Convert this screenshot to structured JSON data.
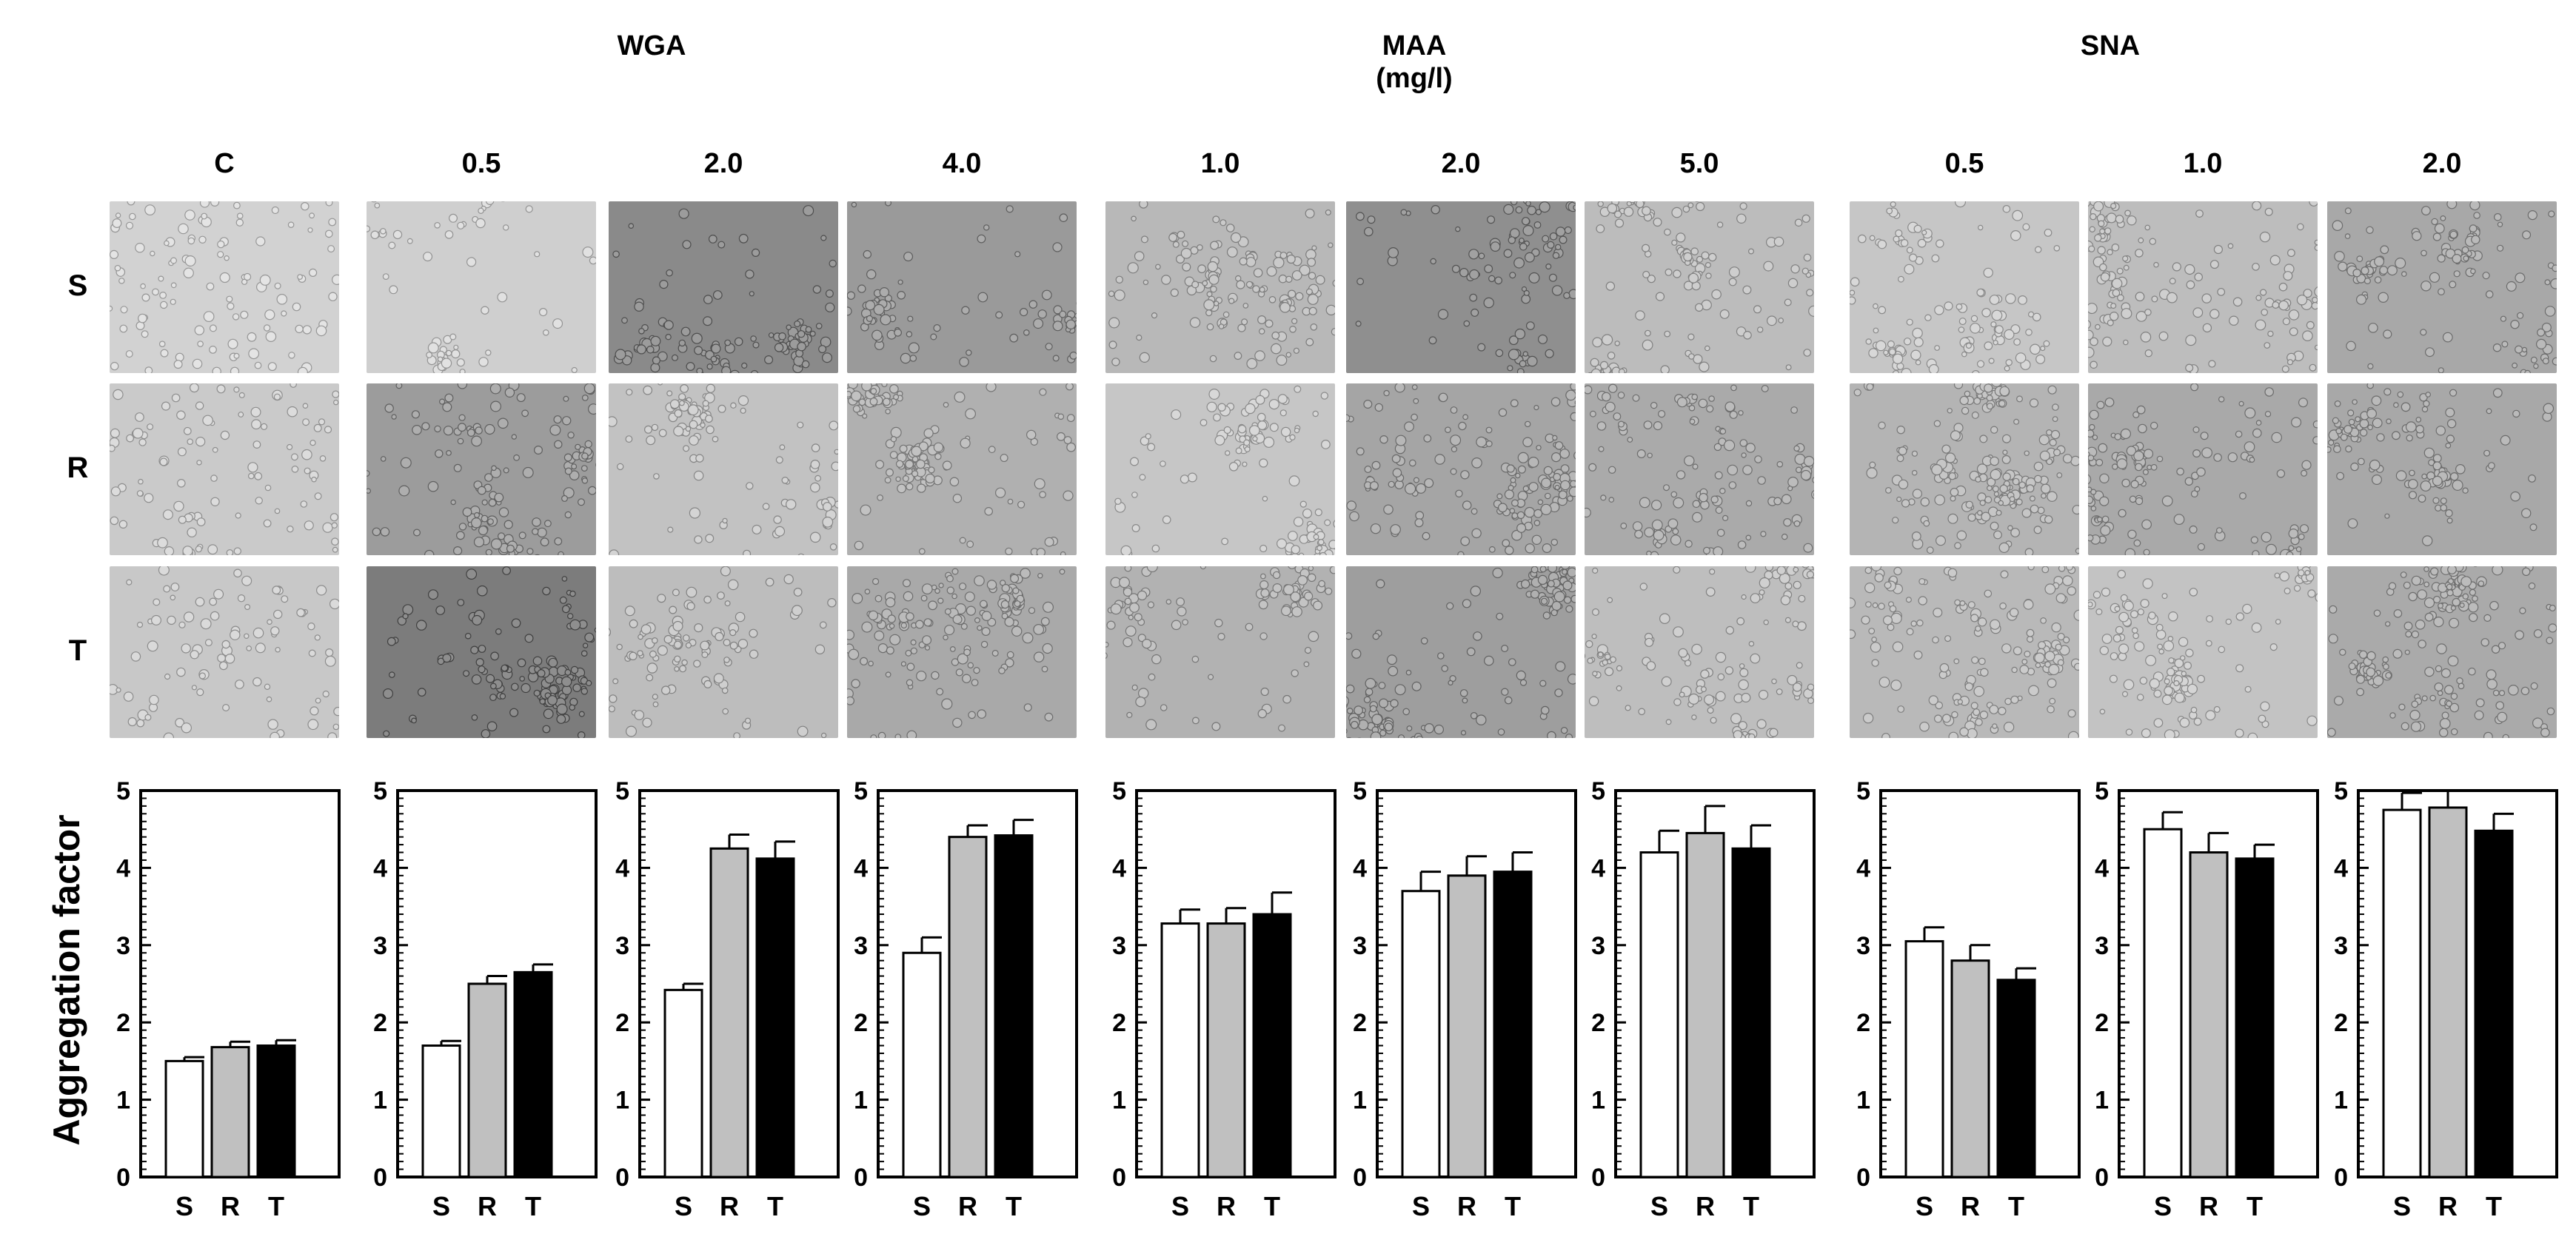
{
  "figure": {
    "group_labels": [
      {
        "id": "wga",
        "line1": "WGA",
        "line2": ""
      },
      {
        "id": "maa",
        "line1": "MAA",
        "line2": "(mg/l)"
      },
      {
        "id": "sna",
        "line1": "SNA",
        "line2": ""
      }
    ],
    "concentration_labels": [
      "C",
      "0.5",
      "2.0",
      "4.0",
      "1.0",
      "2.0",
      "5.0",
      "0.5",
      "1.0",
      "2.0"
    ],
    "row_labels": [
      "S",
      "R",
      "T"
    ],
    "image_tones": {
      "S": [
        "#d2d2d2",
        "#cfcfcf",
        "#8a8a8a",
        "#9a9a9a",
        "#b8b8b8",
        "#8f8f8f",
        "#bcbcbc",
        "#c6c6c6",
        "#bdbdbd",
        "#a8a8a8"
      ],
      "R": [
        "#cacaca",
        "#9c9c9c",
        "#c2c2c2",
        "#b0b0b0",
        "#c6c6c6",
        "#a5a5a5",
        "#aaaaaa",
        "#b4b4b4",
        "#a9a9a9",
        "#a8a8a8"
      ],
      "T": [
        "#c8c8c8",
        "#7c7c7c",
        "#bdbdbd",
        "#a9a9a9",
        "#b2b2b2",
        "#9e9e9e",
        "#bebebe",
        "#b9b9b9",
        "#c3c3c3",
        "#aaaaaa"
      ]
    }
  },
  "chart_data": {
    "type": "bar",
    "ylabel": "Aggregation factor",
    "ylim": [
      0,
      5
    ],
    "yticks": [
      "0",
      "1",
      "2",
      "3",
      "4",
      "5"
    ],
    "categories": [
      "S",
      "R",
      "T"
    ],
    "bar_colors": {
      "S": "#ffffff",
      "R": "#c0c0c0",
      "T": "#000000"
    },
    "panels": [
      {
        "group": "C",
        "concentration": "C",
        "values": [
          1.5,
          1.68,
          1.7
        ],
        "errors": [
          0.05,
          0.07,
          0.07
        ]
      },
      {
        "group": "WGA",
        "concentration": "0.5",
        "values": [
          1.7,
          2.5,
          2.65
        ],
        "errors": [
          0.06,
          0.1,
          0.1
        ]
      },
      {
        "group": "WGA",
        "concentration": "2.0",
        "values": [
          2.42,
          4.25,
          4.12
        ],
        "errors": [
          0.08,
          0.18,
          0.22
        ]
      },
      {
        "group": "WGA",
        "concentration": "4.0",
        "values": [
          2.9,
          4.4,
          4.42
        ],
        "errors": [
          0.2,
          0.15,
          0.2
        ]
      },
      {
        "group": "MAA",
        "concentration": "1.0",
        "values": [
          3.28,
          3.28,
          3.4
        ],
        "errors": [
          0.18,
          0.2,
          0.28
        ]
      },
      {
        "group": "MAA",
        "concentration": "2.0",
        "values": [
          3.7,
          3.9,
          3.95
        ],
        "errors": [
          0.25,
          0.25,
          0.25
        ]
      },
      {
        "group": "MAA",
        "concentration": "5.0",
        "values": [
          4.2,
          4.45,
          4.25
        ],
        "errors": [
          0.28,
          0.35,
          0.3
        ]
      },
      {
        "group": "SNA",
        "concentration": "0.5",
        "values": [
          3.05,
          2.8,
          2.55
        ],
        "errors": [
          0.18,
          0.2,
          0.15
        ]
      },
      {
        "group": "SNA",
        "concentration": "1.0",
        "values": [
          4.5,
          4.2,
          4.12
        ],
        "errors": [
          0.22,
          0.25,
          0.18
        ]
      },
      {
        "group": "SNA",
        "concentration": "2.0",
        "values": [
          4.75,
          4.78,
          4.48
        ],
        "errors": [
          0.22,
          0.22,
          0.22
        ]
      }
    ]
  }
}
